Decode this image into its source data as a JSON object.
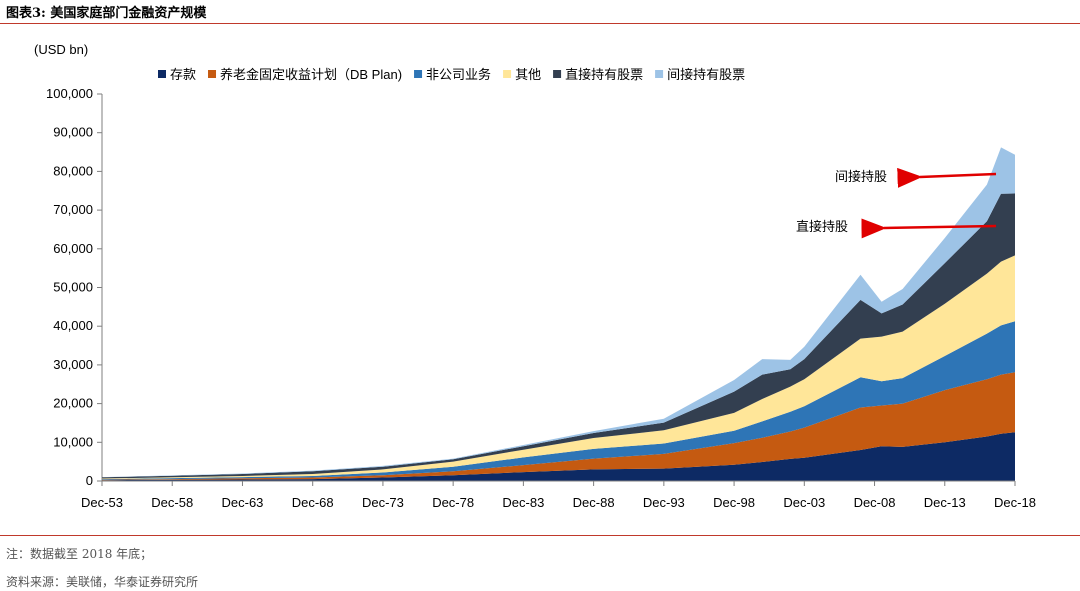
{
  "figure": {
    "title": "图表3:   美国家庭部门金融资产规模",
    "note": "注：数据截至 2018 年底；",
    "source": "资料来源：美联储，华泰证券研究所"
  },
  "chart_data": {
    "type": "area",
    "stacked": true,
    "unit_label": "(USD bn)",
    "x": [
      1953,
      1958,
      1963,
      1968,
      1973,
      1978,
      1983,
      1988,
      1993,
      1998,
      2000,
      2002,
      2003,
      2007,
      2008.5,
      2010,
      2013,
      2016,
      2017,
      2018
    ],
    "x_tick_labels": [
      "Dec-53",
      "Dec-58",
      "Dec-63",
      "Dec-68",
      "Dec-73",
      "Dec-78",
      "Dec-83",
      "Dec-88",
      "Dec-93",
      "Dec-98",
      "Dec-03",
      "Dec-08",
      "Dec-13",
      "Dec-18"
    ],
    "ylim": [
      0,
      100000
    ],
    "y_tick_labels": [
      "0",
      "10,000",
      "20,000",
      "30,000",
      "40,000",
      "50,000",
      "60,000",
      "70,000",
      "80,000",
      "90,000",
      "100,000"
    ],
    "series": [
      {
        "name": "存款",
        "color": "#0d2a64",
        "values": [
          200,
          300,
          400,
          500,
          900,
          1500,
          2300,
          3000,
          3200,
          4200,
          4900,
          5700,
          6000,
          8000,
          9000,
          8800,
          10000,
          11500,
          12200,
          12600
        ]
      },
      {
        "name": "养老金固定收益计划（DB Plan)",
        "color": "#c55a11",
        "values": [
          100,
          200,
          300,
          400,
          600,
          1000,
          1800,
          2800,
          3800,
          5600,
          6300,
          7100,
          7800,
          11000,
          10500,
          11200,
          13500,
          14800,
          15300,
          15500
        ]
      },
      {
        "name": "非公司业务",
        "color": "#2e75b6",
        "values": [
          200,
          250,
          300,
          400,
          700,
          1200,
          2000,
          2500,
          2700,
          3200,
          4200,
          5100,
          5500,
          7800,
          6300,
          6600,
          8800,
          11800,
          12700,
          13200
        ]
      },
      {
        "name": "其他",
        "color": "#ffe699",
        "values": [
          150,
          200,
          300,
          500,
          800,
          1300,
          2000,
          2800,
          3400,
          4600,
          5800,
          6500,
          7000,
          10000,
          11500,
          12000,
          13500,
          15500,
          16500,
          17000
        ]
      },
      {
        "name": "直接持有股票",
        "color": "#333f50",
        "values": [
          300,
          400,
          500,
          700,
          700,
          600,
          900,
          1300,
          2000,
          5500,
          6300,
          4500,
          5200,
          10000,
          6000,
          7000,
          10500,
          13500,
          17500,
          16000
        ]
      },
      {
        "name": "间接持有股票",
        "color": "#9dc3e6",
        "values": [
          50,
          100,
          150,
          200,
          200,
          200,
          300,
          500,
          1000,
          3000,
          4000,
          2400,
          3200,
          6500,
          3000,
          4000,
          6500,
          9500,
          12000,
          10000
        ]
      }
    ],
    "annotations": [
      {
        "text": "间接持股",
        "points_to": "间接持有股票"
      },
      {
        "text": "直接持股",
        "points_to": "直接持有股票"
      }
    ],
    "legend_position": "top"
  }
}
